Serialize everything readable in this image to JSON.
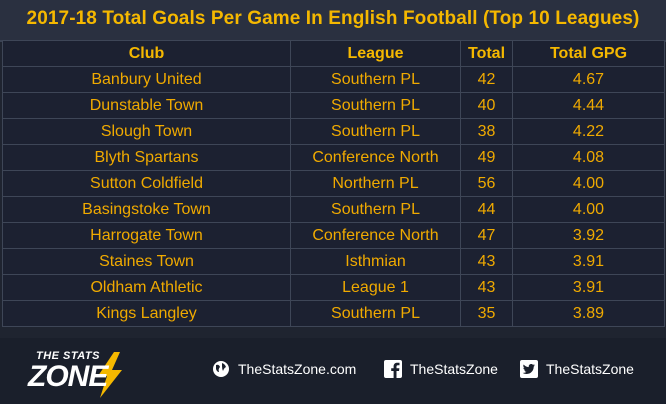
{
  "title": "2017-18 Total Goals Per Game In English Football (Top 10 Leagues)",
  "table": {
    "headers": [
      "Club",
      "League",
      "Total",
      "Total GPG"
    ],
    "rows": [
      [
        "Banbury United",
        "Southern PL",
        "42",
        "4.67"
      ],
      [
        "Dunstable Town",
        "Southern PL",
        "40",
        "4.44"
      ],
      [
        "Slough Town",
        "Southern PL",
        "38",
        "4.22"
      ],
      [
        "Blyth Spartans",
        "Conference North",
        "49",
        "4.08"
      ],
      [
        "Sutton Coldfield",
        "Northern PL",
        "56",
        "4.00"
      ],
      [
        "Basingstoke Town",
        "Southern PL",
        "44",
        "4.00"
      ],
      [
        "Harrogate Town",
        "Conference North",
        "47",
        "3.92"
      ],
      [
        "Staines Town",
        "Isthmian",
        "43",
        "3.91"
      ],
      [
        "Oldham Athletic",
        "League 1",
        "43",
        "3.91"
      ],
      [
        "Kings Langley",
        "Southern PL",
        "35",
        "3.89"
      ]
    ]
  },
  "footer": {
    "logo_top": "THE STATS",
    "logo_main": "ZONE",
    "website": "TheStatsZone.com",
    "facebook": "TheStatsZone",
    "twitter": "TheStatsZone",
    "icons": {
      "website": "globe-icon",
      "facebook": "facebook-icon",
      "twitter": "twitter-icon"
    }
  },
  "colors": {
    "accent": "#f5b800",
    "background": "#1c2131",
    "grid": "#3e4657"
  }
}
